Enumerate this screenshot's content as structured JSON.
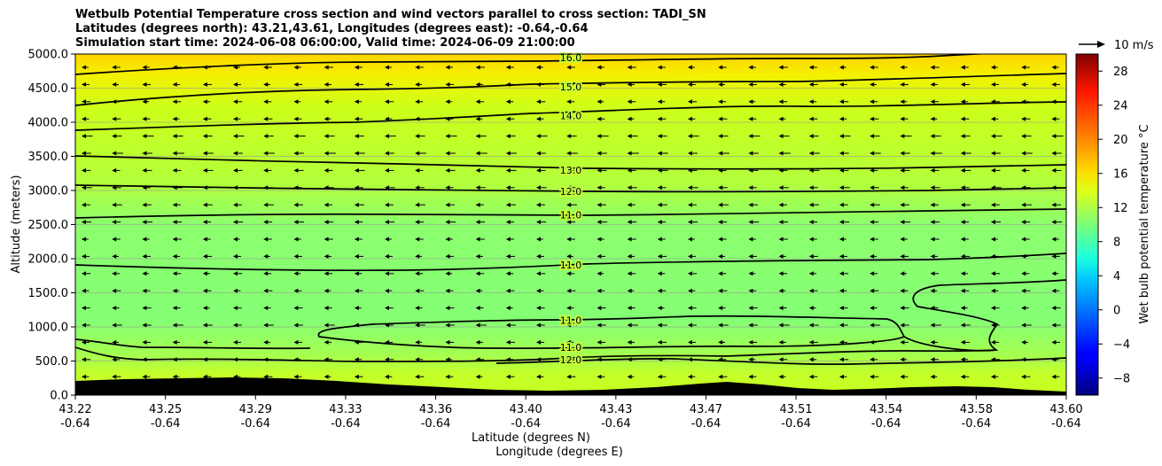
{
  "chart_data": {
    "type": "contour",
    "title_lines": [
      "Wetbulb Potential Temperature cross section and wind vectors parallel to cross section: TADI_SN",
      "Latitudes (degrees north): 43.21,43.61, Longitudes (degrees east): -0.64,-0.64",
      "Simulation start time: 2024-06-08 06:00:00, Valid time: 2024-06-09 21:00:00"
    ],
    "xlabel_lines": [
      "Latitude (degrees N)",
      "Longitude (degrees E)"
    ],
    "ylabel": "Altitude (meters)",
    "x_ticks": [
      {
        "lat": "43.22",
        "lon": "-0.64"
      },
      {
        "lat": "43.25",
        "lon": "-0.64"
      },
      {
        "lat": "43.29",
        "lon": "-0.64"
      },
      {
        "lat": "43.33",
        "lon": "-0.64"
      },
      {
        "lat": "43.36",
        "lon": "-0.64"
      },
      {
        "lat": "43.40",
        "lon": "-0.64"
      },
      {
        "lat": "43.43",
        "lon": "-0.64"
      },
      {
        "lat": "43.47",
        "lon": "-0.64"
      },
      {
        "lat": "43.51",
        "lon": "-0.64"
      },
      {
        "lat": "43.54",
        "lon": "-0.64"
      },
      {
        "lat": "43.58",
        "lon": "-0.64"
      },
      {
        "lat": "43.60",
        "lon": "-0.64"
      }
    ],
    "y_ticks": [
      "0.0",
      "500.0",
      "1000.0",
      "1500.0",
      "2000.0",
      "2500.0",
      "3000.0",
      "3500.0",
      "4000.0",
      "4500.0",
      "5000.0"
    ],
    "ylim": [
      0,
      5000
    ],
    "grid": true,
    "colorbar": {
      "label": "Wet bulb potential temperature $^\\circ$C",
      "label_display": "Wet bulb potential temperature °C",
      "range": [
        -10,
        30
      ],
      "ticks": [
        "−8",
        "−4",
        "0",
        "4",
        "8",
        "12",
        "16",
        "20",
        "24",
        "28"
      ],
      "colormap": "jet"
    },
    "quiver_key": "10 m/s",
    "contour_labels": [
      {
        "value": "16.0",
        "alt": 4950,
        "frac": 0.5
      },
      {
        "value": "15.0",
        "alt": 4520,
        "frac": 0.5
      },
      {
        "value": "14.0",
        "alt": 4100,
        "frac": 0.5
      },
      {
        "value": "13.0",
        "alt": 3300,
        "frac": 0.5
      },
      {
        "value": "12.0",
        "alt": 2990,
        "frac": 0.5
      },
      {
        "value": "11.0",
        "alt": 2640,
        "frac": 0.5
      },
      {
        "value": "11.0",
        "alt": 1910,
        "frac": 0.5
      },
      {
        "value": "11.0",
        "alt": 1100,
        "frac": 0.5
      },
      {
        "value": "11.0",
        "alt": 700,
        "frac": 0.5
      },
      {
        "value": "12.0",
        "alt": 520,
        "frac": 0.5
      }
    ]
  }
}
